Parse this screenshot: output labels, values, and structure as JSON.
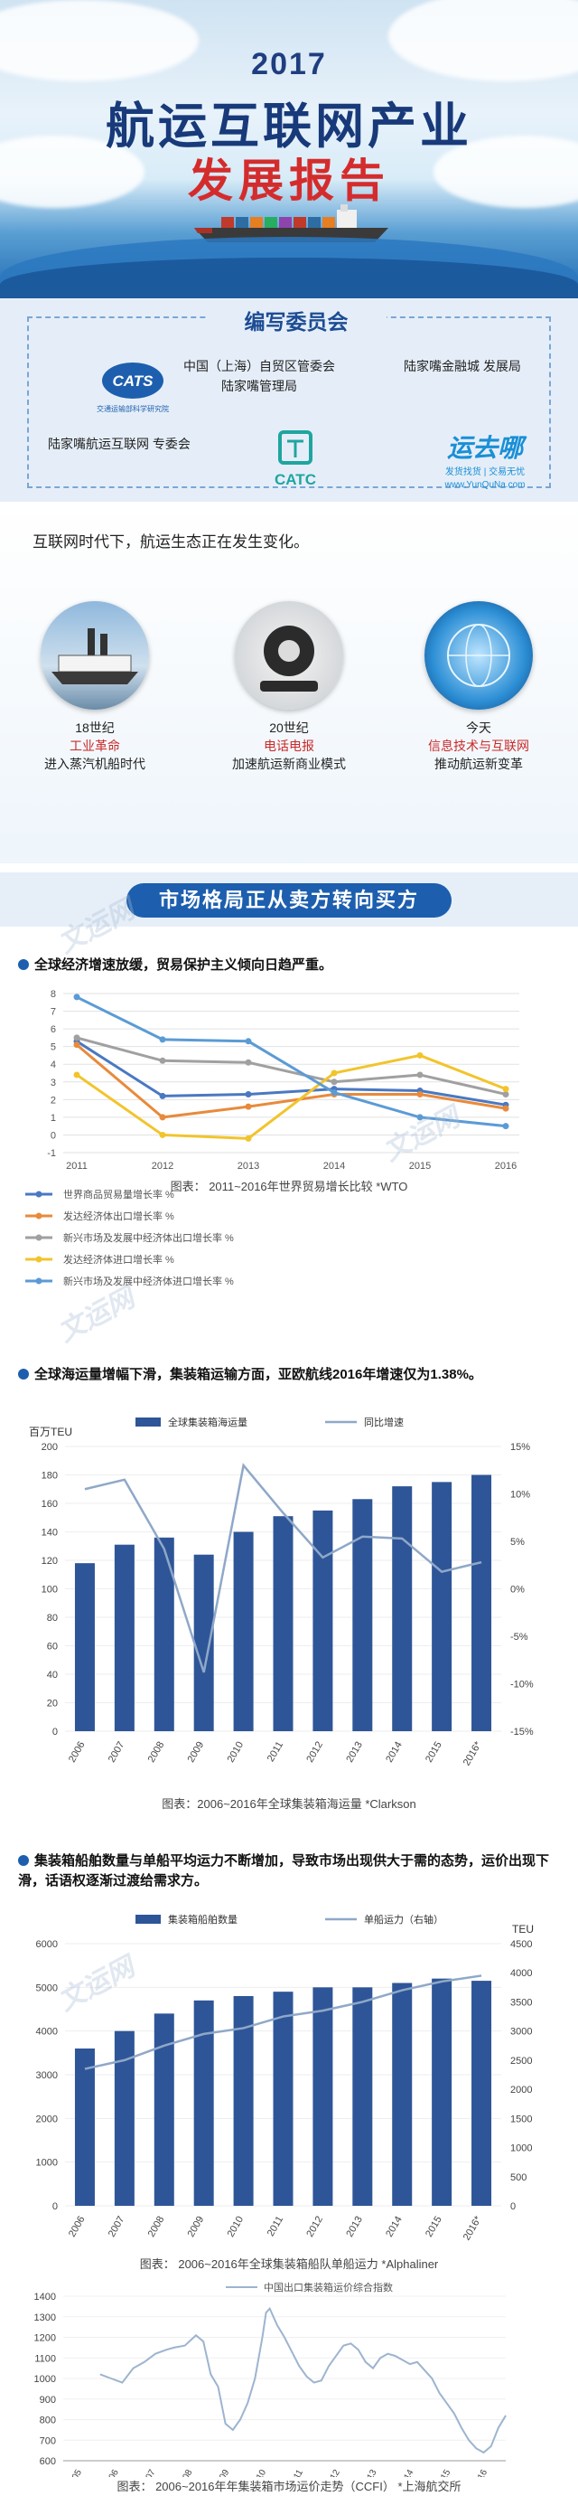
{
  "hero": {
    "year": "2017",
    "title": "航运互联网产业",
    "subtitle": "发展报告",
    "colors": {
      "title": "#183a7a",
      "subtitle": "#d42c2c"
    }
  },
  "committee": {
    "title": "编写委员会",
    "members": [
      {
        "logo_text": "CATS",
        "logo_sub": "交通运输部科学研究院"
      },
      {
        "name": "中国（上海）自贸区管委会 陆家嘴管理局"
      },
      {
        "name": "陆家嘴金融城 发展局"
      },
      {
        "name": "陆家嘴航运互联网 专委会"
      },
      {
        "logo_text": "CATC"
      },
      {
        "logo_text": "运去哪",
        "logo_sub": "发货找货 | 交易无忧",
        "logo_url": "www.YunQuNa.com"
      }
    ]
  },
  "era": {
    "headline": "互联网时代下，航运生态正在发生变化。",
    "items": [
      {
        "period": "18世纪",
        "tech": "工业革命",
        "effect": "进入蒸汽机船时代"
      },
      {
        "period": "20世纪",
        "tech": "电话电报",
        "effect": "加速航运新商业模式"
      },
      {
        "period": "今天",
        "tech": "信息技术与互联网",
        "effect": "推动航运新变革"
      }
    ]
  },
  "banner": {
    "title": "市场格局正从卖方转向买方"
  },
  "section1": {
    "bullet": "全球经济增速放缓，贸易保护主义倾向日趋严重。",
    "caption": "图表：  2011~2016年世界贸易增长比较  *WTO"
  },
  "section2": {
    "bullet": "全球海运量增幅下滑，集装箱运输方面，亚欧航线2016年增速仅为1.38%。",
    "caption": "图表：2006~2016年全球集装箱海运量  *Clarkson"
  },
  "section3": {
    "bullet": "集装箱船舶数量与单船平均运力不断增加，导致市场出现供大于需的态势，运价出现下滑，话语权逐渐过渡给需求方。",
    "caption": "图表：  2006~2016年全球集装箱船队单船运力    *Alphaliner"
  },
  "section4": {
    "caption": "图表：  2006~2016年年集装箱市场运价走势（CCFI）   *上海航交所"
  },
  "watermark": "文运网",
  "chart_data": [
    {
      "type": "line",
      "x": [
        "2011",
        "2012",
        "2013",
        "2014",
        "2015",
        "2016"
      ],
      "ylim": [
        -1,
        8
      ],
      "yticks": [
        -1,
        0,
        1,
        2,
        3,
        4,
        5,
        6,
        7,
        8
      ],
      "grid": true,
      "legend_position": "bottom",
      "series": [
        {
          "name": "世界商品贸易量增长率 %",
          "color": "#4a78c2",
          "values": [
            5.3,
            2.2,
            2.3,
            2.6,
            2.5,
            1.7
          ]
        },
        {
          "name": "发达经济体出口增长率 %",
          "color": "#e88a3c",
          "values": [
            5.1,
            1.0,
            1.6,
            2.3,
            2.3,
            1.5
          ]
        },
        {
          "name": "新兴市场及发展中经济体出口增长率 %",
          "color": "#a0a0a0",
          "values": [
            5.5,
            4.2,
            4.1,
            3.0,
            3.4,
            2.3
          ]
        },
        {
          "name": "发达经济体进口增长率 %",
          "color": "#f2c42c",
          "values": [
            3.4,
            0.0,
            -0.2,
            3.5,
            4.5,
            2.6
          ]
        },
        {
          "name": "新兴市场及发展中经济体进口增长率 %",
          "color": "#5b9bd5",
          "values": [
            7.8,
            5.4,
            5.3,
            2.4,
            1.0,
            0.5
          ]
        }
      ]
    },
    {
      "type": "bar",
      "ylabel": "百万TEU",
      "categories": [
        "2006",
        "2007",
        "2008",
        "2009",
        "2010",
        "2011",
        "2012",
        "2013",
        "2014",
        "2015",
        "2016*"
      ],
      "ylim": [
        0,
        200
      ],
      "yticks": [
        0,
        20,
        40,
        60,
        80,
        100,
        120,
        140,
        160,
        180,
        200
      ],
      "y2lim": [
        -15,
        15
      ],
      "y2ticks": [
        "-15%",
        "-10%",
        "-5%",
        "0%",
        "5%",
        "10%",
        "15%"
      ],
      "legend_position": "top",
      "series": [
        {
          "name": "全球集装箱海运量",
          "color": "#2e5597",
          "kind": "bar",
          "values": [
            118,
            131,
            136,
            124,
            140,
            151,
            155,
            163,
            172,
            175,
            180
          ]
        },
        {
          "name": "同比增速",
          "color": "#8fa8c8",
          "kind": "line",
          "axis": "right",
          "values": [
            10.5,
            11.5,
            4.2,
            -8.8,
            13.0,
            8.0,
            3.3,
            5.5,
            5.3,
            1.8,
            2.8
          ]
        }
      ]
    },
    {
      "type": "bar",
      "ylabel": "",
      "y2label": "TEU",
      "categories": [
        "2006",
        "2007",
        "2008",
        "2009",
        "2010",
        "2011",
        "2012",
        "2013",
        "2014",
        "2015",
        "2016*"
      ],
      "ylim": [
        0,
        6000
      ],
      "yticks": [
        0,
        1000,
        2000,
        3000,
        4000,
        5000,
        6000
      ],
      "y2lim": [
        0,
        4500
      ],
      "y2ticks": [
        0,
        500,
        1000,
        1500,
        2000,
        2500,
        3000,
        3500,
        4000,
        4500
      ],
      "legend_position": "top",
      "series": [
        {
          "name": "集装箱船舶数量",
          "color": "#2e5597",
          "kind": "bar",
          "values": [
            3600,
            4000,
            4400,
            4700,
            4800,
            4900,
            5000,
            5000,
            5100,
            5200,
            5150
          ]
        },
        {
          "name": "单船运力（右轴）",
          "color": "#8fa8c8",
          "kind": "line",
          "axis": "right",
          "values": [
            2350,
            2500,
            2750,
            2950,
            3050,
            3250,
            3350,
            3500,
            3700,
            3850,
            3950
          ]
        }
      ]
    },
    {
      "type": "line",
      "x": [
        "2005",
        "2006",
        "2007",
        "2008",
        "2009",
        "2010",
        "2011",
        "2012",
        "2013",
        "2014",
        "2015",
        "2016"
      ],
      "ylim": [
        600,
        1400
      ],
      "yticks": [
        600,
        700,
        800,
        900,
        1000,
        1100,
        1200,
        1300,
        1400
      ],
      "legend_position": "top",
      "series": [
        {
          "name": "中国出口集装箱运价综合指数",
          "color": "#9db4cf",
          "points": [
            [
              2006.0,
              1020
            ],
            [
              2006.3,
              1000
            ],
            [
              2006.6,
              980
            ],
            [
              2006.9,
              1050
            ],
            [
              2007.2,
              1080
            ],
            [
              2007.5,
              1120
            ],
            [
              2007.8,
              1140
            ],
            [
              2008.0,
              1150
            ],
            [
              2008.3,
              1160
            ],
            [
              2008.6,
              1210
            ],
            [
              2008.8,
              1180
            ],
            [
              2009.0,
              1020
            ],
            [
              2009.2,
              960
            ],
            [
              2009.4,
              780
            ],
            [
              2009.6,
              750
            ],
            [
              2009.8,
              800
            ],
            [
              2010.0,
              880
            ],
            [
              2010.2,
              1000
            ],
            [
              2010.4,
              1200
            ],
            [
              2010.5,
              1320
            ],
            [
              2010.6,
              1340
            ],
            [
              2010.8,
              1260
            ],
            [
              2011.0,
              1200
            ],
            [
              2011.2,
              1130
            ],
            [
              2011.4,
              1060
            ],
            [
              2011.6,
              1010
            ],
            [
              2011.8,
              980
            ],
            [
              2012.0,
              990
            ],
            [
              2012.2,
              1060
            ],
            [
              2012.4,
              1110
            ],
            [
              2012.6,
              1160
            ],
            [
              2012.8,
              1170
            ],
            [
              2013.0,
              1140
            ],
            [
              2013.2,
              1080
            ],
            [
              2013.4,
              1050
            ],
            [
              2013.6,
              1100
            ],
            [
              2013.8,
              1120
            ],
            [
              2014.0,
              1110
            ],
            [
              2014.2,
              1090
            ],
            [
              2014.4,
              1070
            ],
            [
              2014.6,
              1080
            ],
            [
              2014.8,
              1040
            ],
            [
              2015.0,
              1000
            ],
            [
              2015.2,
              930
            ],
            [
              2015.4,
              880
            ],
            [
              2015.6,
              830
            ],
            [
              2015.8,
              760
            ],
            [
              2016.0,
              700
            ],
            [
              2016.2,
              660
            ],
            [
              2016.4,
              640
            ],
            [
              2016.6,
              670
            ],
            [
              2016.8,
              760
            ],
            [
              2017.0,
              820
            ]
          ]
        }
      ]
    }
  ]
}
